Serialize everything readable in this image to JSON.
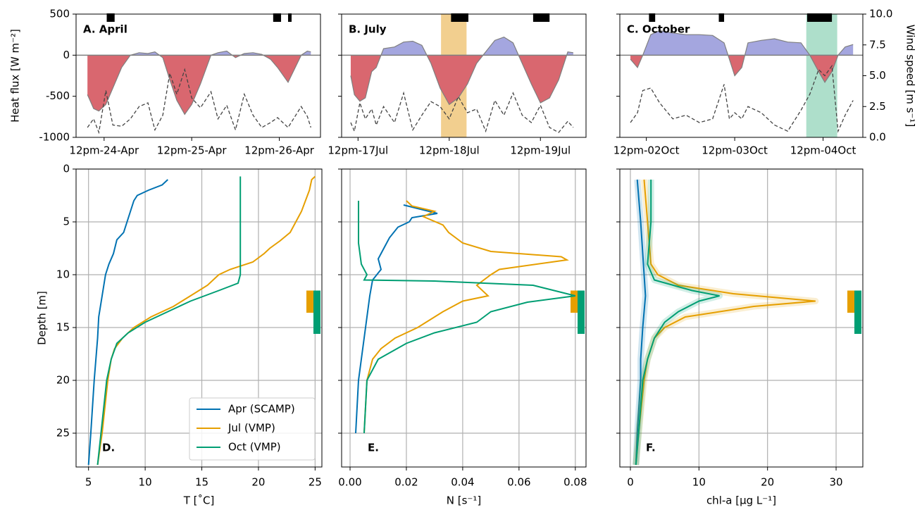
{
  "chart_data": [
    {
      "type": "area",
      "title": "A. April",
      "ylabel": "Heat flux [W m⁻²]",
      "x": [
        24.31,
        24.38,
        24.44,
        24.52,
        24.6,
        24.7,
        24.8,
        24.9,
        25.0,
        25.08,
        25.17,
        25.25,
        25.33,
        25.42,
        25.5,
        25.6,
        25.72,
        25.8,
        25.9,
        26.0,
        26.1,
        26.2,
        26.3,
        26.4,
        26.48,
        26.6,
        26.75,
        26.82,
        26.86
      ],
      "xlim": [
        24.18,
        26.97
      ],
      "xticks": [
        {
          "value": 24.5,
          "label": "12pm-24-Apr"
        },
        {
          "value": 25.5,
          "label": "12pm-25-Apr"
        },
        {
          "value": 26.5,
          "label": "12pm-26-Apr"
        }
      ],
      "ylim": [
        -1000,
        500
      ],
      "yticks": [
        500,
        0,
        -500,
        -1000
      ],
      "y2lim": [
        0,
        10
      ],
      "zero_line": true,
      "markers": [
        [
          24.53,
          24.62
        ],
        [
          26.43,
          26.52
        ],
        [
          26.6,
          26.64
        ]
      ],
      "series": [
        {
          "color": "#a4a6df",
          "negative_color": "#d9676f",
          "line_color": "#7f7f7f",
          "values": [
            -480,
            -650,
            -680,
            -600,
            -400,
            -150,
            0,
            30,
            20,
            40,
            -30,
            -300,
            -550,
            -720,
            -600,
            -350,
            0,
            30,
            50,
            -30,
            20,
            30,
            10,
            -50,
            -150,
            -330,
            0,
            50,
            40
          ]
        },
        {
          "axis": "y2",
          "color": "#444444",
          "dashed": true,
          "values": [
            0.8,
            1.5,
            0.4,
            3.8,
            1.0,
            0.9,
            1.5,
            2.5,
            2.8,
            0.6,
            1.8,
            5.2,
            3.5,
            5.5,
            3.2,
            2.4,
            3.7,
            1.5,
            2.6,
            0.6,
            3.5,
            1.8,
            0.8,
            1.2,
            1.6,
            0.8,
            2.5,
            1.7,
            0.8
          ]
        }
      ]
    },
    {
      "type": "area",
      "title": "B. July",
      "x": [
        17.42,
        17.46,
        17.52,
        17.58,
        17.65,
        17.7,
        17.78,
        17.9,
        18.0,
        18.1,
        18.2,
        18.3,
        18.4,
        18.5,
        18.6,
        18.7,
        18.8,
        18.9,
        19.0,
        19.1,
        19.2,
        19.3,
        19.4,
        19.5,
        19.6,
        19.7,
        19.8,
        19.86
      ],
      "xlim": [
        17.32,
        20.0
      ],
      "xticks": [
        {
          "value": 17.5,
          "label": "12pm-17Jul"
        },
        {
          "value": 18.5,
          "label": "12pm-18Jul"
        },
        {
          "value": 19.5,
          "label": "12pm-19Jul"
        }
      ],
      "ylim": [
        -1000,
        500
      ],
      "yticks": [
        500,
        0,
        -500,
        -1000
      ],
      "show_ytick_labels": false,
      "y2lim": [
        0,
        10
      ],
      "zero_line": true,
      "shade": {
        "range": [
          18.41,
          18.69
        ],
        "color": "#f2cf8f"
      },
      "markers": [
        [
          18.52,
          18.71
        ],
        [
          19.42,
          19.6
        ]
      ],
      "series": [
        {
          "color": "#a4a6df",
          "negative_color": "#d9676f",
          "line_color": "#7f7f7f",
          "values": [
            -250,
            -480,
            -560,
            -520,
            -200,
            -150,
            80,
            100,
            160,
            170,
            120,
            -100,
            -400,
            -600,
            -520,
            -350,
            -100,
            40,
            180,
            220,
            150,
            -100,
            -350,
            -580,
            -520,
            -300,
            40,
            30
          ]
        },
        {
          "axis": "y2",
          "color": "#444444",
          "dashed": true,
          "values": [
            1.2,
            0.5,
            2.8,
            1.5,
            2.3,
            1.0,
            2.5,
            1.2,
            3.6,
            0.6,
            1.8,
            2.9,
            2.5,
            1.5,
            3.3,
            2.0,
            2.3,
            0.5,
            3.0,
            1.8,
            3.6,
            1.8,
            1.2,
            2.6,
            0.8,
            0.4,
            1.3,
            0.8
          ]
        }
      ]
    },
    {
      "type": "area",
      "title": "C. October",
      "y2label": "Wind speed [m s⁻¹]",
      "x": [
        2.32,
        2.4,
        2.46,
        2.55,
        2.65,
        2.8,
        2.95,
        3.1,
        3.25,
        3.38,
        3.44,
        3.5,
        3.58,
        3.65,
        3.8,
        3.95,
        4.1,
        4.25,
        4.35,
        4.45,
        4.52,
        4.6,
        4.67,
        4.75,
        4.84
      ],
      "xlim": [
        2.2,
        4.95
      ],
      "xticks": [
        {
          "value": 2.5,
          "label": "12pm-02Oct"
        },
        {
          "value": 3.5,
          "label": "12pm-03Oct"
        },
        {
          "value": 4.5,
          "label": "12pm-04Oct"
        }
      ],
      "ylim": [
        -1000,
        500
      ],
      "yticks": [
        500,
        0,
        -500,
        -1000
      ],
      "show_ytick_labels": false,
      "y2lim": [
        0,
        10
      ],
      "y2ticks": [
        {
          "value": 10,
          "label": "10.0"
        },
        7.5,
        {
          "value": 5,
          "label": "5.0"
        },
        2.5,
        {
          "value": 0,
          "label": "0.0"
        }
      ],
      "zero_line": true,
      "shade": {
        "range": [
          4.31,
          4.66
        ],
        "color": "#aedfcb"
      },
      "markers": [
        [
          2.53,
          2.6
        ],
        [
          3.32,
          3.38
        ],
        [
          4.32,
          4.6
        ]
      ],
      "series": [
        {
          "color": "#a4a6df",
          "negative_color": "#d9676f",
          "line_color": "#7f7f7f",
          "values": [
            -50,
            -150,
            0,
            250,
            300,
            270,
            250,
            250,
            240,
            150,
            -50,
            -250,
            -150,
            150,
            180,
            200,
            160,
            150,
            0,
            -200,
            -330,
            -200,
            0,
            100,
            130
          ]
        },
        {
          "axis": "y2",
          "color": "#444444",
          "dashed": true,
          "values": [
            1.2,
            2.0,
            3.8,
            4.0,
            2.8,
            1.5,
            1.8,
            1.2,
            1.5,
            4.3,
            1.5,
            2.0,
            1.5,
            2.5,
            2.0,
            1.0,
            0.5,
            2.2,
            3.5,
            5.5,
            5.0,
            5.8,
            0.5,
            1.8,
            3.0
          ]
        }
      ]
    },
    {
      "type": "profile",
      "title": "D.",
      "xlabel": "T [˚C]",
      "ylabel": "Depth [m]",
      "xlim": [
        3.9,
        25.6
      ],
      "xticks": [
        5,
        10,
        15,
        20,
        25
      ],
      "ylim": [
        0,
        28.2
      ],
      "y_inverted": true,
      "yticks": [
        0,
        5,
        10,
        15,
        20,
        25
      ],
      "grid": true,
      "legend": "lower right",
      "depth_ranges": [
        {
          "color": "#e69f00",
          "range": [
            11.5,
            13.6
          ]
        },
        {
          "color": "#009e73",
          "range": [
            11.5,
            15.6
          ]
        }
      ],
      "series": [
        {
          "name": "Apr (SCAMP)",
          "color": "#0072b2",
          "depth": [
            1,
            1.5,
            2,
            2.5,
            3,
            4,
            5,
            6,
            6.7,
            8,
            9,
            10,
            12,
            14,
            16,
            20,
            25,
            28
          ],
          "values": [
            12,
            11.5,
            10.3,
            9.3,
            9.0,
            8.7,
            8.4,
            8.1,
            7.5,
            7.2,
            6.8,
            6.5,
            6.2,
            5.9,
            5.8,
            5.5,
            5.2,
            5.0
          ]
        },
        {
          "name": "Jul (VMP)",
          "color": "#e69f00",
          "depth": [
            0.7,
            1,
            2,
            4,
            5,
            6,
            6.8,
            7.5,
            8,
            8.8,
            9.5,
            10,
            11,
            12,
            13,
            14,
            15,
            16,
            17,
            18,
            20,
            25,
            28
          ],
          "values": [
            25.0,
            24.7,
            24.5,
            23.8,
            23.3,
            22.8,
            21.9,
            21.0,
            20.5,
            19.5,
            17.5,
            16.5,
            15.5,
            14.0,
            12.5,
            10.5,
            9.0,
            8.0,
            7.3,
            7.0,
            6.7,
            6.2,
            5.8
          ]
        },
        {
          "name": "Oct (VMP)",
          "color": "#009e73",
          "depth": [
            0.7,
            5,
            10,
            10.8,
            11.5,
            12.5,
            13.5,
            14.5,
            15.5,
            16.5,
            18,
            20,
            25,
            28
          ],
          "values": [
            18.4,
            18.4,
            18.4,
            18.2,
            16.5,
            14.0,
            12.0,
            10.0,
            8.5,
            7.5,
            7.0,
            6.6,
            6.1,
            5.8
          ]
        }
      ]
    },
    {
      "type": "profile",
      "title": "E.",
      "xlabel": "N [s⁻¹]",
      "xlim": [
        -0.003,
        0.0838
      ],
      "xticks": [
        {
          "value": 0,
          "label": "0.00"
        },
        0.02,
        0.04,
        0.06,
        0.08
      ],
      "ylim": [
        0,
        28.2
      ],
      "y_inverted": true,
      "yticks": [
        0,
        5,
        10,
        15,
        20,
        25
      ],
      "show_ytick_labels": false,
      "grid": true,
      "depth_ranges": [
        {
          "color": "#e69f00",
          "range": [
            11.5,
            13.6
          ]
        },
        {
          "color": "#009e73",
          "range": [
            11.5,
            15.6
          ]
        }
      ],
      "series": [
        {
          "color": "#0072b2",
          "depth": [
            3.4,
            4.2,
            4.6,
            5,
            5.5,
            6.5,
            7.5,
            8.5,
            9.5,
            10.5,
            12,
            14,
            16,
            18,
            20,
            25
          ],
          "values": [
            0.019,
            0.031,
            0.022,
            0.021,
            0.017,
            0.014,
            0.012,
            0.01,
            0.011,
            0.008,
            0.007,
            0.006,
            0.005,
            0.004,
            0.003,
            0.002
          ]
        },
        {
          "color": "#e69f00",
          "depth": [
            3,
            3.5,
            4,
            4.5,
            5.3,
            6,
            7,
            7.8,
            8.3,
            8.6,
            9.5,
            10,
            11,
            12,
            12.5,
            13.5,
            15,
            16,
            17,
            18,
            20,
            25
          ],
          "values": [
            0.02,
            0.022,
            0.03,
            0.026,
            0.033,
            0.035,
            0.04,
            0.05,
            0.075,
            0.077,
            0.053,
            0.05,
            0.045,
            0.049,
            0.04,
            0.033,
            0.024,
            0.016,
            0.011,
            0.008,
            0.006,
            0.005
          ]
        },
        {
          "color": "#009e73",
          "depth": [
            3,
            5,
            7,
            9,
            10,
            10.5,
            10.6,
            11,
            12,
            12.6,
            13.5,
            14.5,
            15.5,
            16.5,
            18,
            20,
            25
          ],
          "values": [
            0.003,
            0.003,
            0.003,
            0.004,
            0.006,
            0.005,
            0.03,
            0.065,
            0.08,
            0.063,
            0.05,
            0.045,
            0.03,
            0.02,
            0.01,
            0.006,
            0.005
          ]
        }
      ]
    },
    {
      "type": "profile",
      "title": "F.",
      "xlabel": "chl-a [μg L⁻¹]",
      "band": true,
      "xlim": [
        -1.54,
        33.9
      ],
      "xticks": [
        0,
        10,
        20,
        30
      ],
      "ylim": [
        0,
        28.2
      ],
      "y_inverted": true,
      "yticks": [
        0,
        5,
        10,
        15,
        20,
        25
      ],
      "show_ytick_labels": false,
      "grid": true,
      "depth_ranges": [
        {
          "color": "#e69f00",
          "range": [
            11.5,
            13.6
          ]
        },
        {
          "color": "#009e73",
          "range": [
            11.5,
            15.6
          ]
        }
      ],
      "series": [
        {
          "color": "#0072b2",
          "depth": [
            1,
            5,
            10,
            12,
            15,
            18,
            20,
            25,
            28
          ],
          "values": [
            1.0,
            1.5,
            2.0,
            2.2,
            1.8,
            1.5,
            1.5,
            1.0,
            0.8
          ]
        },
        {
          "color": "#e69f00",
          "depth": [
            1,
            5,
            9,
            10,
            11,
            11.8,
            12.5,
            13,
            14,
            15,
            16,
            18,
            20,
            25,
            28
          ],
          "values": [
            2.0,
            2.5,
            3.0,
            4.0,
            7,
            15,
            27,
            18,
            8,
            5,
            3.5,
            2.5,
            2.0,
            1.2,
            0.8
          ]
        },
        {
          "color": "#009e73",
          "depth": [
            1,
            5,
            9,
            10.5,
            11.5,
            12,
            12.5,
            13.5,
            14.5,
            16,
            18,
            20,
            25,
            28
          ],
          "values": [
            3.0,
            3.0,
            2.5,
            3.5,
            9,
            13,
            10,
            7,
            5,
            3.5,
            2.5,
            1.8,
            1.2,
            0.8
          ]
        }
      ]
    }
  ]
}
